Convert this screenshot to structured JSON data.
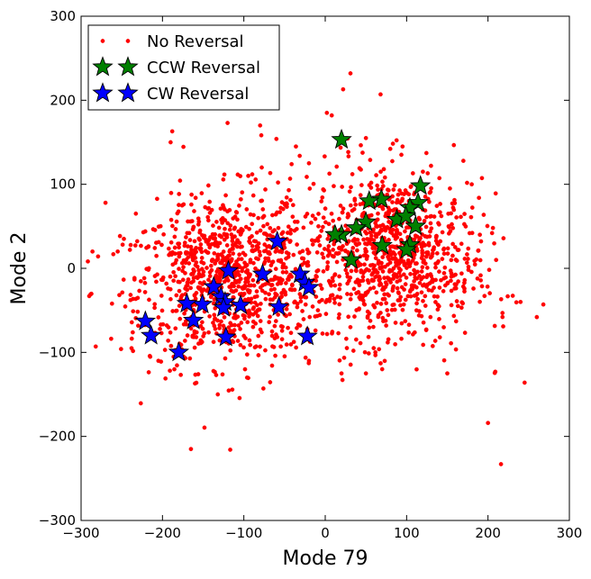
{
  "chart_data": {
    "type": "scatter",
    "xlabel": "Mode 79",
    "ylabel": "Mode 2",
    "xlim": [
      -300,
      300
    ],
    "ylim": [
      -300,
      300
    ],
    "xticks": [
      -300,
      -200,
      -100,
      0,
      100,
      200,
      300
    ],
    "yticks": [
      -300,
      -200,
      -100,
      0,
      100,
      200,
      300
    ],
    "tick_labels_x": [
      "−300",
      "−200",
      "−100",
      "0",
      "100",
      "200",
      "300"
    ],
    "tick_labels_y": [
      "−300",
      "−200",
      "−100",
      "0",
      "100",
      "200",
      "300"
    ],
    "grid": false,
    "legend": {
      "placement": "top-left",
      "entries": [
        {
          "label": "No Reversal",
          "marker": "dot",
          "color": "#ff0000"
        },
        {
          "label": "CCW Reversal",
          "marker": "star",
          "color": "#008000"
        },
        {
          "label": "CW Reversal",
          "marker": "star",
          "color": "#0000ff"
        }
      ]
    },
    "series": [
      {
        "name": "No Reversal",
        "marker": "dot",
        "color": "#ff0000",
        "approx_count": 2000,
        "description": "two overlapping elliptical clouds, centered near (-120,-10) and (80,20); visible outliers listed below",
        "outliers": [
          [
            -290,
            -33
          ],
          [
            -286,
            20
          ],
          [
            -282,
            -93
          ],
          [
            -270,
            78
          ],
          [
            -262,
            -42
          ],
          [
            -255,
            20
          ],
          [
            -238,
            -95
          ],
          [
            -240,
            22
          ],
          [
            -205,
            -110
          ],
          [
            -190,
            150
          ],
          [
            -188,
            163
          ],
          [
            -165,
            -215
          ],
          [
            -160,
            -137
          ],
          [
            -132,
            -150
          ],
          [
            -120,
            173
          ],
          [
            -80,
            170
          ],
          [
            -76,
            -143
          ],
          [
            -96,
            -130
          ],
          [
            -78,
            120
          ],
          [
            -60,
            154
          ],
          [
            -36,
            145
          ],
          [
            -20,
            125
          ],
          [
            2,
            185
          ],
          [
            8,
            182
          ],
          [
            22,
            213
          ],
          [
            31,
            232
          ],
          [
            50,
            155
          ],
          [
            68,
            207
          ],
          [
            72,
            118
          ],
          [
            95,
            145
          ],
          [
            120,
            115
          ],
          [
            130,
            122
          ],
          [
            180,
            100
          ],
          [
            190,
            40
          ],
          [
            210,
            10
          ],
          [
            240,
            -40
          ],
          [
            268,
            -43
          ],
          [
            260,
            -58
          ],
          [
            245,
            -136
          ],
          [
            200,
            -184
          ],
          [
            216,
            -233
          ],
          [
            209,
            -123
          ],
          [
            20,
            -125
          ],
          [
            50,
            -125
          ],
          [
            -20,
            -110
          ],
          [
            70,
            -120
          ],
          [
            150,
            -125
          ]
        ]
      },
      {
        "name": "CCW Reversal",
        "marker": "star",
        "color": "#008000",
        "points": [
          [
            20,
            153
          ],
          [
            117,
            98
          ],
          [
            69,
            82
          ],
          [
            54,
            80
          ],
          [
            114,
            78
          ],
          [
            104,
            72
          ],
          [
            88,
            58
          ],
          [
            99,
            62
          ],
          [
            50,
            55
          ],
          [
            38,
            48
          ],
          [
            111,
            50
          ],
          [
            20,
            40
          ],
          [
            12,
            40
          ],
          [
            104,
            28
          ],
          [
            70,
            27
          ],
          [
            100,
            22
          ],
          [
            32,
            10
          ]
        ]
      },
      {
        "name": "CW Reversal",
        "marker": "star",
        "color": "#0000ff",
        "points": [
          [
            -59,
            32
          ],
          [
            -119,
            -3
          ],
          [
            -77,
            -7
          ],
          [
            -31,
            -7
          ],
          [
            -25,
            -17
          ],
          [
            -20,
            -23
          ],
          [
            -137,
            -22
          ],
          [
            -128,
            -34
          ],
          [
            -123,
            -40
          ],
          [
            -151,
            -43
          ],
          [
            -170,
            -42
          ],
          [
            -104,
            -44
          ],
          [
            -57,
            -46
          ],
          [
            -125,
            -47
          ],
          [
            -221,
            -63
          ],
          [
            -162,
            -62
          ],
          [
            -214,
            -80
          ],
          [
            -122,
            -82
          ],
          [
            -22,
            -81
          ],
          [
            -180,
            -100
          ]
        ]
      }
    ]
  }
}
